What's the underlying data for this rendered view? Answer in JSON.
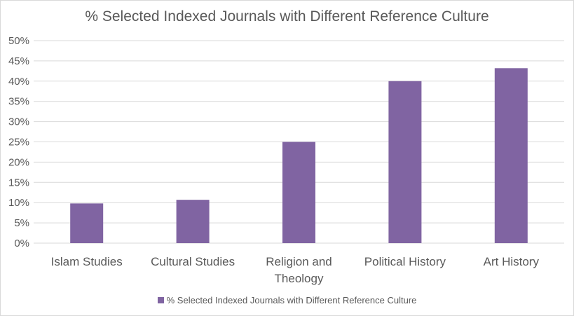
{
  "chart_data": {
    "type": "bar",
    "title": "% Selected Indexed Journals with Different Reference Culture",
    "categories": [
      [
        "Islam Studies"
      ],
      [
        "Cultural Studies"
      ],
      [
        "Religion and",
        "Theology"
      ],
      [
        "Political History"
      ],
      [
        "Art History"
      ]
    ],
    "series": [
      {
        "name": "% Selected Indexed Journals with Different Reference Culture",
        "values": [
          9.8,
          10.7,
          25.0,
          40.0,
          43.2
        ],
        "color": "#8064a2"
      }
    ],
    "ylim": [
      0,
      50
    ],
    "yticks": [
      "0%",
      "5%",
      "10%",
      "15%",
      "20%",
      "25%",
      "30%",
      "35%",
      "40%",
      "45%",
      "50%"
    ],
    "grid": true,
    "legend": "bottom",
    "gridline_color": "#d9d9d9",
    "text_color": "#595959"
  }
}
